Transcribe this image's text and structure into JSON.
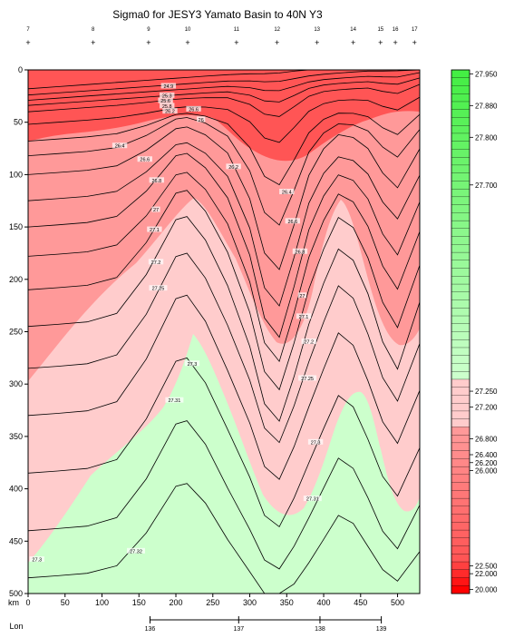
{
  "chart_data": {
    "type": "heatmap",
    "title": "Sigma0 for JESY3 Yamato Basin to 40N Y3",
    "station_labels": [
      "7",
      "8",
      "9",
      "10",
      "11",
      "12",
      "13",
      "14",
      "15",
      "16",
      "17"
    ],
    "station_km": [
      0,
      88,
      163,
      216,
      282,
      337,
      391,
      440,
      477,
      497,
      523
    ],
    "x_axis": {
      "unit_label": "km",
      "range": [
        0,
        530
      ],
      "ticks": [
        0,
        50,
        100,
        150,
        200,
        250,
        300,
        350,
        400,
        450,
        500
      ]
    },
    "y_axis": {
      "range": [
        0,
        500
      ],
      "inverted": true,
      "ticks": [
        0,
        50,
        100,
        150,
        200,
        250,
        300,
        350,
        400,
        450,
        500
      ]
    },
    "lon_axis": {
      "label": "Lon",
      "ticks": [
        136,
        137,
        138,
        139
      ],
      "tick_km": [
        165,
        285,
        395,
        478
      ]
    },
    "colorbar": {
      "labels": [
        "27.950",
        "27.880",
        "27.800",
        "27.700",
        "27.250",
        "27.200",
        "26.800",
        "26.400",
        "26.200",
        "26.000",
        "22.500",
        "22.000",
        "20.000"
      ],
      "label_rows": [
        0,
        4,
        8,
        14,
        40,
        42,
        46,
        48,
        49,
        50,
        62,
        63,
        65
      ],
      "row_count": 66,
      "green_rows": 39,
      "pink_rows": 6,
      "colors": {
        "green": "#44ee44",
        "green_light": "#ccffcc",
        "pink": "#ffcccc",
        "red_light": "#ff9999",
        "red": "#ff5555",
        "red_dark": "#ff0000"
      }
    },
    "contour_labels": [
      {
        "text": "24.9",
        "x": 190,
        "y": 16
      },
      {
        "text": "25.3",
        "x": 188,
        "y": 25
      },
      {
        "text": "25.6",
        "x": 186,
        "y": 30
      },
      {
        "text": "25.8",
        "x": 188,
        "y": 35
      },
      {
        "text": "26.2",
        "x": 192,
        "y": 40
      },
      {
        "text": "26.6",
        "x": 224,
        "y": 38
      },
      {
        "text": "26",
        "x": 234,
        "y": 48
      },
      {
        "text": "26.4",
        "x": 124,
        "y": 73
      },
      {
        "text": "26.6",
        "x": 158,
        "y": 86
      },
      {
        "text": "26.8",
        "x": 174,
        "y": 106
      },
      {
        "text": "26.2",
        "x": 278,
        "y": 93
      },
      {
        "text": "26.4",
        "x": 350,
        "y": 117
      },
      {
        "text": "26.6",
        "x": 358,
        "y": 145
      },
      {
        "text": "26.8",
        "x": 368,
        "y": 174
      },
      {
        "text": "27",
        "x": 173,
        "y": 134
      },
      {
        "text": "27.1",
        "x": 171,
        "y": 153
      },
      {
        "text": "27.2",
        "x": 173,
        "y": 184
      },
      {
        "text": "27.25",
        "x": 176,
        "y": 209
      },
      {
        "text": "27",
        "x": 371,
        "y": 216
      },
      {
        "text": "27.1",
        "x": 373,
        "y": 236
      },
      {
        "text": "27.2",
        "x": 380,
        "y": 260
      },
      {
        "text": "27.25",
        "x": 378,
        "y": 295
      },
      {
        "text": "27.3",
        "x": 222,
        "y": 281
      },
      {
        "text": "27.31",
        "x": 198,
        "y": 316
      },
      {
        "text": "27.3",
        "x": 389,
        "y": 356
      },
      {
        "text": "27.31",
        "x": 385,
        "y": 410
      },
      {
        "text": "27.32",
        "x": 146,
        "y": 460
      },
      {
        "text": "27.3",
        "x": 12,
        "y": 468
      }
    ]
  }
}
